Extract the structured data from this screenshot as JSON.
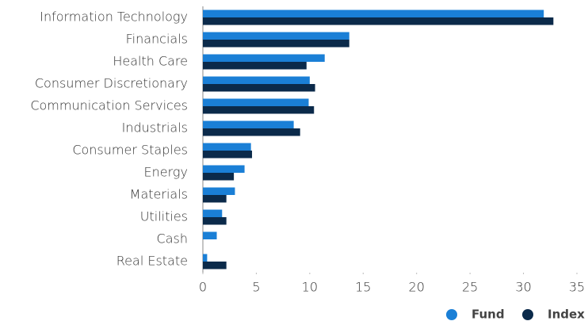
{
  "chart_data": {
    "type": "hbar",
    "categories": [
      "Information Technology",
      "Financials",
      "Health Care",
      "Consumer Discretionary",
      "Communication Services",
      "Industrials",
      "Consumer Staples",
      "Energy",
      "Materials",
      "Utilities",
      "Cash",
      "Real Estate"
    ],
    "series": [
      {
        "name": "Fund",
        "color": "#1a7fd6",
        "values": [
          31.9,
          13.7,
          11.4,
          10.0,
          9.9,
          8.5,
          4.5,
          3.9,
          3.0,
          1.8,
          1.3,
          0.4
        ]
      },
      {
        "name": "Index",
        "color": "#0b2a4a",
        "values": [
          32.8,
          13.7,
          9.7,
          10.5,
          10.4,
          9.1,
          4.6,
          2.9,
          2.2,
          2.2,
          null,
          2.2
        ]
      }
    ],
    "xlim": [
      0,
      35
    ],
    "xticks": [
      0,
      5,
      10,
      15,
      20,
      25,
      30,
      35
    ],
    "legend": "bottom-right"
  }
}
